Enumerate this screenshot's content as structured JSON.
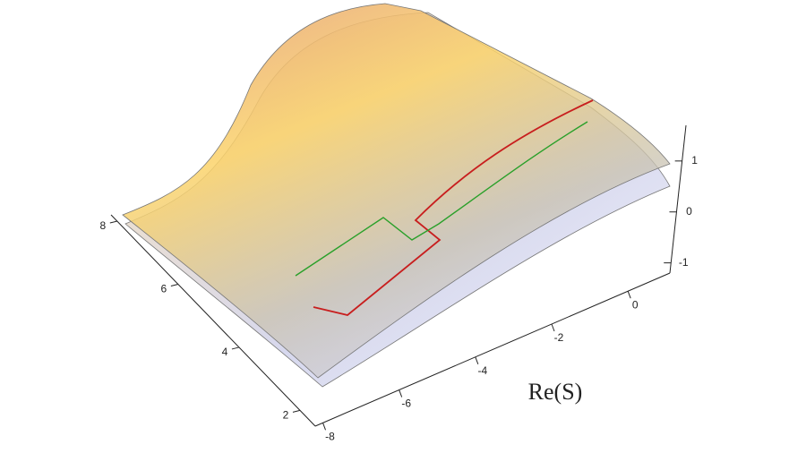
{
  "chart_data": {
    "type": "surface3d",
    "x_axis_label": "Re(S)",
    "xlim": [
      -8.2,
      1.1
    ],
    "xticks": [
      -8,
      -6,
      -4,
      -2,
      0
    ],
    "ylim": [
      1.5,
      8.2
    ],
    "yticks": [
      2,
      4,
      6,
      8
    ],
    "zlim": [
      -1.2,
      1.7
    ],
    "zticks": [
      -1,
      0,
      1
    ]
  }
}
